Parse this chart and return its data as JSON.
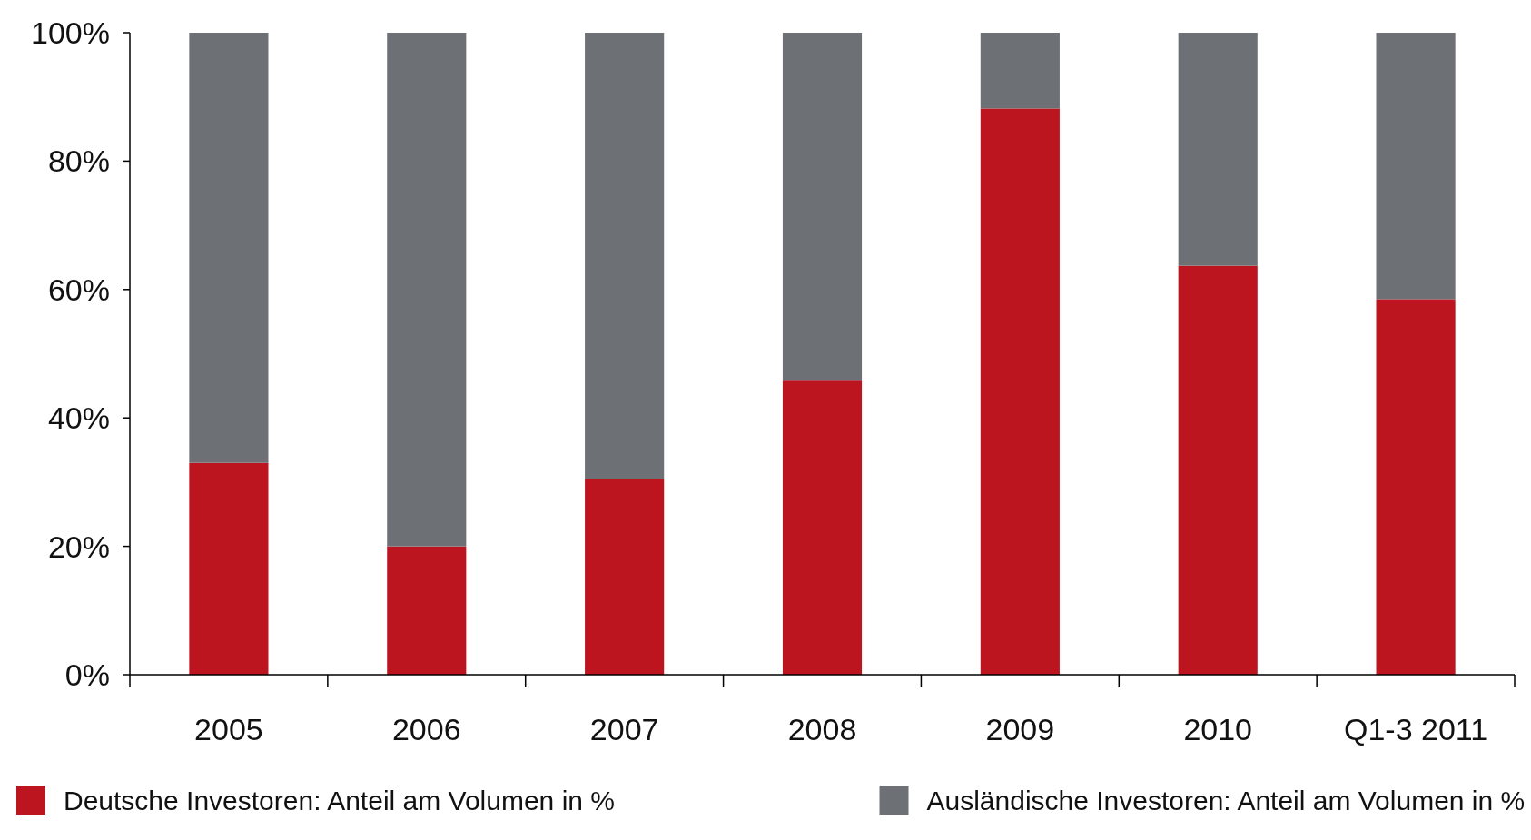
{
  "chart_data": {
    "type": "bar",
    "stacked": true,
    "categories": [
      "2005",
      "2006",
      "2007",
      "2008",
      "2009",
      "2010",
      "Q1-3 2011"
    ],
    "series": [
      {
        "name": "Deutsche Investoren: Anteil am Volumen in %",
        "color": "#bd1520",
        "values": [
          33,
          20,
          30.5,
          45.8,
          88.2,
          63.7,
          58.5
        ]
      },
      {
        "name": "Ausländische Investoren: Anteil am Volumen in %",
        "color": "#6d7074",
        "values": [
          67,
          80,
          69.5,
          54.2,
          11.8,
          36.3,
          41.5
        ]
      }
    ],
    "ylim": [
      0,
      100
    ],
    "yticks": [
      {
        "value": 0,
        "label": "0%"
      },
      {
        "value": 20,
        "label": "20%"
      },
      {
        "value": 40,
        "label": "40%"
      },
      {
        "value": 60,
        "label": "60%"
      },
      {
        "value": 80,
        "label": "80%"
      },
      {
        "value": 100,
        "label": "100%"
      }
    ],
    "grid": false,
    "legend": "bottom"
  }
}
